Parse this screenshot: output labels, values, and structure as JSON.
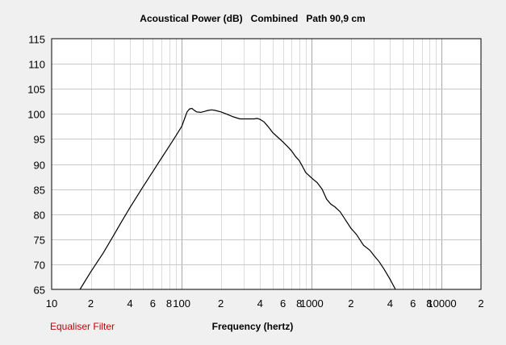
{
  "chart_data": {
    "type": "line",
    "title": "Acoustical Power (dB)   Combined   Path 90,9 cm",
    "xlabel": "Frequency (hertz)",
    "ylabel": "",
    "x_scale": "log",
    "xlim": [
      10,
      20000
    ],
    "ylim": [
      65,
      115
    ],
    "y_ticks": [
      65,
      70,
      75,
      80,
      85,
      90,
      95,
      100,
      105,
      110,
      115
    ],
    "x_ticks": [
      {
        "value": 10,
        "label": "10"
      },
      {
        "value": 20,
        "label": "2"
      },
      {
        "value": 40,
        "label": "4"
      },
      {
        "value": 60,
        "label": "6"
      },
      {
        "value": 80,
        "label": "8"
      },
      {
        "value": 100,
        "label": "100"
      },
      {
        "value": 200,
        "label": "2"
      },
      {
        "value": 400,
        "label": "4"
      },
      {
        "value": 600,
        "label": "6"
      },
      {
        "value": 800,
        "label": "8"
      },
      {
        "value": 1000,
        "label": "1000"
      },
      {
        "value": 2000,
        "label": "2"
      },
      {
        "value": 4000,
        "label": "4"
      },
      {
        "value": 6000,
        "label": "6"
      },
      {
        "value": 8000,
        "label": "8"
      },
      {
        "value": 10000,
        "label": "10000"
      },
      {
        "value": 20000,
        "label": "2"
      }
    ],
    "grid": true,
    "series": [
      {
        "color": "#000000",
        "points": [
          [
            16.5,
            65
          ],
          [
            20,
            68.5
          ],
          [
            25,
            72.3
          ],
          [
            30,
            75.8
          ],
          [
            35,
            78.8
          ],
          [
            40,
            81.3
          ],
          [
            50,
            85.3
          ],
          [
            60,
            88.5
          ],
          [
            70,
            91.2
          ],
          [
            80,
            93.5
          ],
          [
            90,
            95.6
          ],
          [
            100,
            97.5
          ],
          [
            105,
            99.0
          ],
          [
            110,
            100.4
          ],
          [
            115,
            101.0
          ],
          [
            120,
            101.1
          ],
          [
            125,
            100.7
          ],
          [
            130,
            100.4
          ],
          [
            140,
            100.3
          ],
          [
            150,
            100.5
          ],
          [
            160,
            100.7
          ],
          [
            170,
            100.8
          ],
          [
            180,
            100.7
          ],
          [
            200,
            100.4
          ],
          [
            220,
            100.0
          ],
          [
            250,
            99.4
          ],
          [
            280,
            99.0
          ],
          [
            320,
            99.0
          ],
          [
            360,
            99.0
          ],
          [
            380,
            99.1
          ],
          [
            400,
            98.9
          ],
          [
            430,
            98.4
          ],
          [
            460,
            97.5
          ],
          [
            500,
            96.3
          ],
          [
            550,
            95.3
          ],
          [
            600,
            94.4
          ],
          [
            650,
            93.5
          ],
          [
            700,
            92.6
          ],
          [
            750,
            91.5
          ],
          [
            800,
            90.7
          ],
          [
            850,
            89.5
          ],
          [
            900,
            88.3
          ],
          [
            1000,
            87.2
          ],
          [
            1100,
            86.3
          ],
          [
            1200,
            85.0
          ],
          [
            1300,
            83.0
          ],
          [
            1400,
            82.0
          ],
          [
            1500,
            81.5
          ],
          [
            1650,
            80.5
          ],
          [
            1800,
            79.0
          ],
          [
            2000,
            77.2
          ],
          [
            2200,
            76.0
          ],
          [
            2500,
            73.8
          ],
          [
            2800,
            72.8
          ],
          [
            3000,
            71.8
          ],
          [
            3300,
            70.5
          ],
          [
            3600,
            69.0
          ],
          [
            4000,
            67.0
          ],
          [
            4400,
            65.0
          ]
        ]
      }
    ]
  },
  "footer": {
    "filter_link": "Equaliser Filter"
  }
}
